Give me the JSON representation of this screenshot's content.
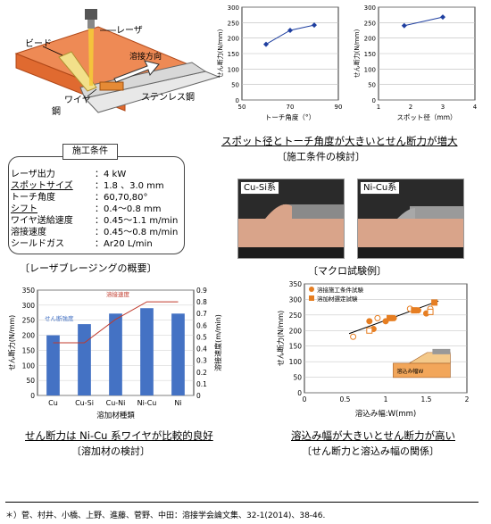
{
  "diagram": {
    "labels": {
      "bead": "ビード",
      "laser": "レーザ",
      "direction": "溶接方向",
      "wire": "ワイヤ",
      "steel": "鋼",
      "stainless": "ステンレス鋼"
    }
  },
  "conditions": {
    "title": "施工条件",
    "rows": [
      {
        "key": "レーザ出力",
        "value": "：4 kW"
      },
      {
        "key": "スポットサイズ",
        "value": "：1.8 、3.0 mm"
      },
      {
        "key": "トーチ角度",
        "value": "：60,70,80°"
      },
      {
        "key": "シフト",
        "value": "：0.4～0.8 mm"
      },
      {
        "key": "ワイヤ送給速度",
        "value": "：0.45～1.1 m/min"
      },
      {
        "key": "溶接速度",
        "value": "：0.45～0.8 m/min"
      },
      {
        "key": "シールドガス",
        "value": "：Ar20  L/min"
      }
    ]
  },
  "captions": {
    "laser_overview": "〔レーザブレージングの概要〕",
    "conditions_headline": "スポット径とトーチ角度が大きいとせん断力が増大",
    "conditions_sub": "〔施工条件の検討〕",
    "macro": "〔マクロ試験例〕",
    "filler_headline": "せん断力は Ni-Cu 系ワイヤが比較的良好",
    "filler_sub": "〔溶加材の検討〕",
    "width_headline": "溶込み幅が大きいとせん断力が高い",
    "width_sub": "〔せん断力と溶込み幅の関係〕"
  },
  "macro": {
    "left_label": "Cu-Si系",
    "right_label": "Ni-Cu系"
  },
  "footnote": "＊）菅、村井、小橋、上野、進藤、菅野、中田：溶接学会論文集、32-1(2014)、38-46.",
  "chart_data": [
    {
      "type": "line",
      "title": "",
      "xlabel": "トーチ角度（°）",
      "ylabel": "せん断力(N/mm)",
      "xlim": [
        50,
        90
      ],
      "ylim": [
        0,
        300
      ],
      "xticks": [
        "50",
        "70",
        "90"
      ],
      "yticks": [
        "0",
        "50",
        "100",
        "150",
        "200",
        "250",
        "300"
      ],
      "series": [
        {
          "x": [
            60,
            70,
            80
          ],
          "y": [
            180,
            225,
            242
          ]
        }
      ]
    },
    {
      "type": "line",
      "title": "",
      "xlabel": "スポット径（mm）",
      "ylabel": "せん断力(N/mm)",
      "xlim": [
        1,
        4
      ],
      "ylim": [
        0,
        300
      ],
      "xticks": [
        "1",
        "2",
        "3",
        "4"
      ],
      "yticks": [
        "0",
        "50",
        "100",
        "150",
        "200",
        "250",
        "300"
      ],
      "series": [
        {
          "x": [
            1.8,
            3.0
          ],
          "y": [
            240,
            268
          ]
        }
      ]
    },
    {
      "type": "bar",
      "title": "",
      "xlabel": "溶加材種類",
      "ylabel": "せん断力(N/mm)",
      "y2label": "溶接速度(m/min)",
      "categories": [
        "Cu",
        "Cu-Si",
        "Cu-Ni",
        "Ni-Cu",
        "Ni"
      ],
      "ylim": [
        0,
        350
      ],
      "y2lim": [
        0,
        0.9
      ],
      "yticks": [
        "0",
        "50",
        "100",
        "150",
        "200",
        "250",
        "300",
        "350"
      ],
      "y2ticks": [
        "0",
        "0.1",
        "0.2",
        "0.3",
        "0.4",
        "0.5",
        "0.6",
        "0.7",
        "0.8",
        "0.9"
      ],
      "series": [
        {
          "name": "せん断強度",
          "values": [
            200,
            237,
            272,
            290,
            272
          ],
          "color": "#4472C4"
        },
        {
          "name": "溶接速度",
          "values": [
            0.45,
            0.45,
            0.65,
            0.8,
            0.8
          ],
          "color": "#C0392B",
          "axis": "y2",
          "type": "line"
        }
      ]
    },
    {
      "type": "scatter",
      "title": "",
      "xlabel": "溶込み幅:W(mm)",
      "ylabel": "せん断力(N/mm)",
      "xlim": [
        0,
        2
      ],
      "ylim": [
        0,
        350
      ],
      "xticks": [
        "0",
        "0.5",
        "1",
        "1.5",
        "2"
      ],
      "yticks": [
        "0",
        "50",
        "100",
        "150",
        "200",
        "250",
        "300",
        "350"
      ],
      "series": [
        {
          "name": "溶接施工条件試験",
          "marker": "circle",
          "color": "#E67E22",
          "x": [
            0.6,
            0.8,
            0.85,
            0.9,
            1.0,
            1.1,
            1.3,
            1.4,
            1.5,
            1.55
          ],
          "y": [
            180,
            230,
            205,
            240,
            230,
            240,
            270,
            265,
            255,
            270
          ]
        },
        {
          "name": "溶加材選定試験",
          "marker": "square",
          "color": "#E67E22",
          "x": [
            0.8,
            1.05,
            1.35,
            1.55,
            1.6
          ],
          "y": [
            200,
            240,
            265,
            260,
            290
          ]
        }
      ],
      "inset_label": "溶込み幅W"
    }
  ]
}
